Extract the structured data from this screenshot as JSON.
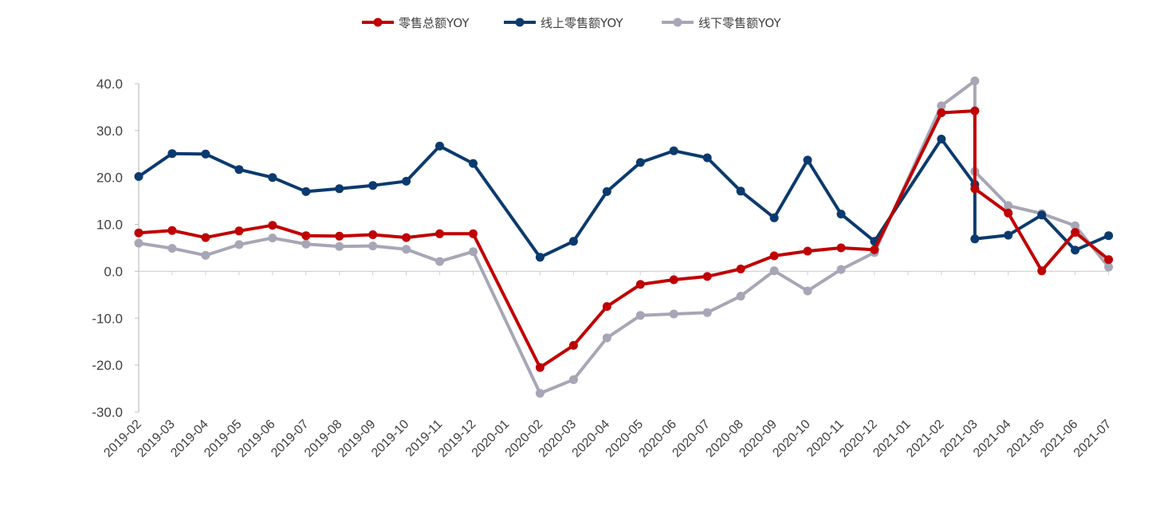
{
  "chart_data": {
    "type": "line",
    "title": "",
    "xlabel": "",
    "ylabel": "",
    "ylim": [
      -30,
      40
    ],
    "y_ticks": [
      "40.0",
      "30.0",
      "20.0",
      "10.0",
      "0.0",
      "-10.0",
      "-20.0",
      "-30.0"
    ],
    "categories": [
      "2019-02",
      "2019-03",
      "2019-04",
      "2019-05",
      "2019-06",
      "2019-07",
      "2019-08",
      "2019-09",
      "2019-10",
      "2019-11",
      "2019-12",
      "2020-01",
      "2020-02",
      "2020-03",
      "2020-04",
      "2020-05",
      "2020-06",
      "2020-07",
      "2020-08",
      "2020-09",
      "2020-10",
      "2020-11",
      "2020-12",
      "2021-01",
      "2021-02",
      "2021-03",
      "2021-04",
      "2021-05",
      "2021-06",
      "2021-07"
    ],
    "legend_position": "top",
    "grid": false,
    "series": [
      {
        "name": "零售总额YOY",
        "color": "#C00000",
        "points": [
          {
            "x": "2019-02",
            "y": 8.2
          },
          {
            "x": "2019-03",
            "y": 8.7
          },
          {
            "x": "2019-04",
            "y": 7.2
          },
          {
            "x": "2019-05",
            "y": 8.6
          },
          {
            "x": "2019-06",
            "y": 9.8
          },
          {
            "x": "2019-07",
            "y": 7.6
          },
          {
            "x": "2019-08",
            "y": 7.5
          },
          {
            "x": "2019-09",
            "y": 7.8
          },
          {
            "x": "2019-10",
            "y": 7.2
          },
          {
            "x": "2019-11",
            "y": 8.0
          },
          {
            "x": "2019-12",
            "y": 8.0
          },
          {
            "x": "2020-02",
            "y": -20.5
          },
          {
            "x": "2020-03",
            "y": -15.8
          },
          {
            "x": "2020-04",
            "y": -7.5
          },
          {
            "x": "2020-05",
            "y": -2.8
          },
          {
            "x": "2020-06",
            "y": -1.8
          },
          {
            "x": "2020-07",
            "y": -1.1
          },
          {
            "x": "2020-08",
            "y": 0.5
          },
          {
            "x": "2020-09",
            "y": 3.3
          },
          {
            "x": "2020-10",
            "y": 4.3
          },
          {
            "x": "2020-11",
            "y": 5.0
          },
          {
            "x": "2020-12",
            "y": 4.6
          },
          {
            "x": "2021-02",
            "y": 33.8
          },
          {
            "x": "2021-03",
            "y": 34.2
          },
          {
            "x": "2021-03",
            "y": 17.6
          },
          {
            "x": "2021-04",
            "y": 12.4
          },
          {
            "x": "2021-05",
            "y": 0.1
          },
          {
            "x": "2021-06",
            "y": 8.3
          },
          {
            "x": "2021-07",
            "y": 2.5
          }
        ]
      },
      {
        "name": "线上零售额YOY",
        "color": "#0B3A6E",
        "points": [
          {
            "x": "2019-02",
            "y": 20.2
          },
          {
            "x": "2019-03",
            "y": 25.1
          },
          {
            "x": "2019-04",
            "y": 25.0
          },
          {
            "x": "2019-05",
            "y": 21.7
          },
          {
            "x": "2019-06",
            "y": 20.0
          },
          {
            "x": "2019-07",
            "y": 17.0
          },
          {
            "x": "2019-08",
            "y": 17.6
          },
          {
            "x": "2019-09",
            "y": 18.3
          },
          {
            "x": "2019-10",
            "y": 19.2
          },
          {
            "x": "2019-11",
            "y": 26.7
          },
          {
            "x": "2019-12",
            "y": 23.0
          },
          {
            "x": "2020-02",
            "y": 3.0
          },
          {
            "x": "2020-03",
            "y": 6.4
          },
          {
            "x": "2020-04",
            "y": 17.0
          },
          {
            "x": "2020-05",
            "y": 23.2
          },
          {
            "x": "2020-06",
            "y": 25.7
          },
          {
            "x": "2020-07",
            "y": 24.2
          },
          {
            "x": "2020-08",
            "y": 17.1
          },
          {
            "x": "2020-09",
            "y": 11.4
          },
          {
            "x": "2020-10",
            "y": 23.7
          },
          {
            "x": "2020-11",
            "y": 12.2
          },
          {
            "x": "2020-12",
            "y": 6.4
          },
          {
            "x": "2021-02",
            "y": 28.2
          },
          {
            "x": "2021-03",
            "y": 18.5
          },
          {
            "x": "2021-03",
            "y": 6.9
          },
          {
            "x": "2021-04",
            "y": 7.7
          },
          {
            "x": "2021-05",
            "y": 12.0
          },
          {
            "x": "2021-06",
            "y": 4.5
          },
          {
            "x": "2021-07",
            "y": 7.6
          }
        ]
      },
      {
        "name": "线下零售额YOY",
        "color": "#A6A6B6",
        "points": [
          {
            "x": "2019-02",
            "y": 6.0
          },
          {
            "x": "2019-03",
            "y": 4.9
          },
          {
            "x": "2019-04",
            "y": 3.4
          },
          {
            "x": "2019-05",
            "y": 5.7
          },
          {
            "x": "2019-06",
            "y": 7.1
          },
          {
            "x": "2019-07",
            "y": 5.8
          },
          {
            "x": "2019-08",
            "y": 5.3
          },
          {
            "x": "2019-09",
            "y": 5.4
          },
          {
            "x": "2019-10",
            "y": 4.7
          },
          {
            "x": "2019-11",
            "y": 2.1
          },
          {
            "x": "2019-12",
            "y": 4.2
          },
          {
            "x": "2020-02",
            "y": -26.0
          },
          {
            "x": "2020-03",
            "y": -23.1
          },
          {
            "x": "2020-04",
            "y": -14.2
          },
          {
            "x": "2020-05",
            "y": -9.4
          },
          {
            "x": "2020-06",
            "y": -9.1
          },
          {
            "x": "2020-07",
            "y": -8.8
          },
          {
            "x": "2020-08",
            "y": -5.3
          },
          {
            "x": "2020-09",
            "y": 0.1
          },
          {
            "x": "2020-10",
            "y": -4.2
          },
          {
            "x": "2020-11",
            "y": 0.4
          },
          {
            "x": "2020-12",
            "y": 4.0
          },
          {
            "x": "2021-02",
            "y": 35.3
          },
          {
            "x": "2021-03",
            "y": 40.6
          },
          {
            "x": "2021-03",
            "y": 21.3
          },
          {
            "x": "2021-04",
            "y": 14.0
          },
          {
            "x": "2021-05",
            "y": 12.3
          },
          {
            "x": "2021-06",
            "y": 9.7
          },
          {
            "x": "2021-07",
            "y": 0.9
          }
        ]
      }
    ]
  }
}
